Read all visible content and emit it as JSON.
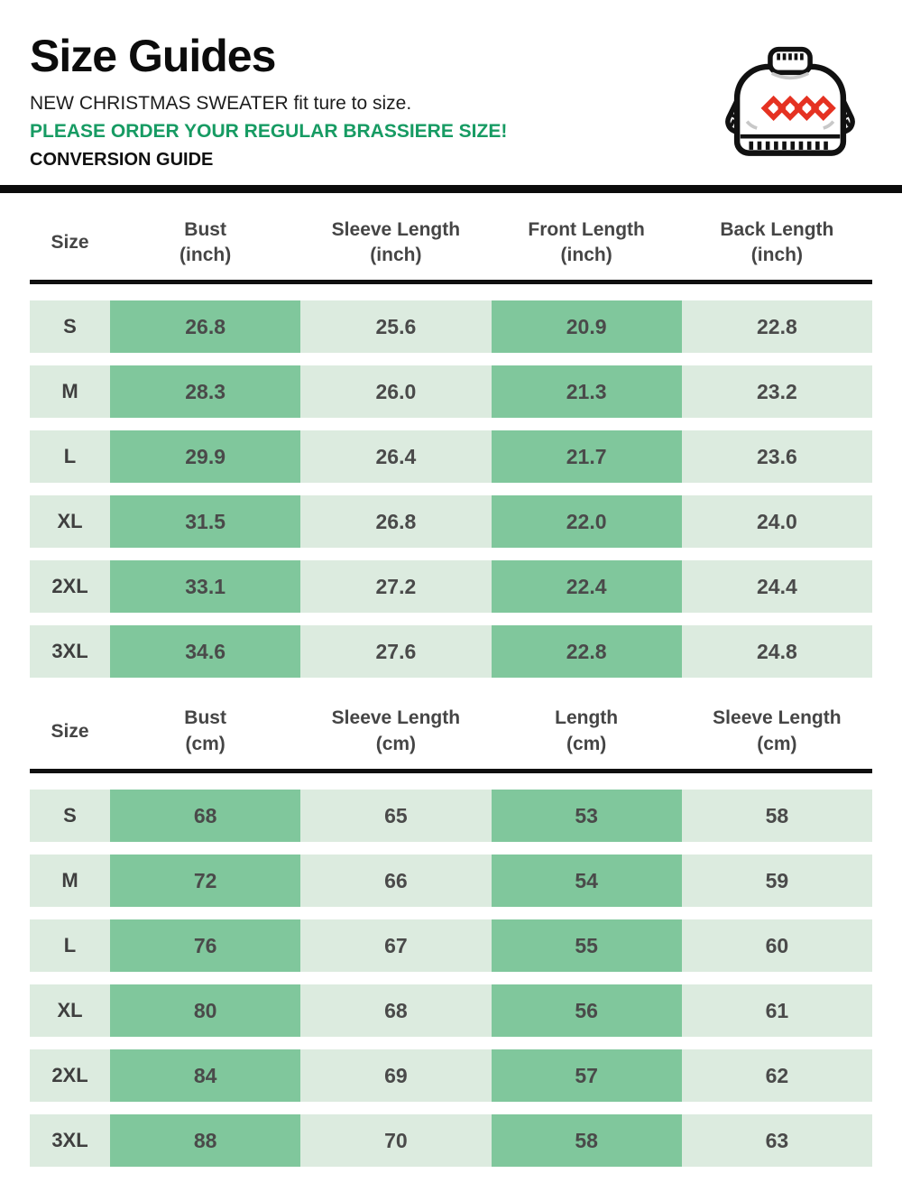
{
  "header": {
    "title": "Size Guides",
    "subtitle": "NEW CHRISTMAS SWEATER fit ture to size.",
    "notice": "PLEASE ORDER YOUR REGULAR BRASSIERE SIZE!",
    "section_label": "CONVERSION GUIDE",
    "icon": "christmas-sweater-icon"
  },
  "colors": {
    "accent_green": "#179b63",
    "cell_dark_green": "#80c79c",
    "cell_light_green": "#dcebdf",
    "cell_text_gray": "#4a4a4a",
    "divider_black": "#0c0c0c",
    "sweater_diamond_red": "#e53222"
  },
  "tables": [
    {
      "name": "inch-size-table",
      "columns": [
        {
          "label": "Size",
          "unit": ""
        },
        {
          "label": "Bust",
          "unit": "(inch)"
        },
        {
          "label": "Sleeve Length",
          "unit": "(inch)"
        },
        {
          "label": "Front Length",
          "unit": "(inch)"
        },
        {
          "label": "Back Length",
          "unit": "(inch)"
        }
      ],
      "rows": [
        {
          "size": "S",
          "values": [
            "26.8",
            "25.6",
            "20.9",
            "22.8"
          ]
        },
        {
          "size": "M",
          "values": [
            "28.3",
            "26.0",
            "21.3",
            "23.2"
          ]
        },
        {
          "size": "L",
          "values": [
            "29.9",
            "26.4",
            "21.7",
            "23.6"
          ]
        },
        {
          "size": "XL",
          "values": [
            "31.5",
            "26.8",
            "22.0",
            "24.0"
          ]
        },
        {
          "size": "2XL",
          "values": [
            "33.1",
            "27.2",
            "22.4",
            "24.4"
          ]
        },
        {
          "size": "3XL",
          "values": [
            "34.6",
            "27.6",
            "22.8",
            "24.8"
          ]
        }
      ]
    },
    {
      "name": "cm-size-table",
      "columns": [
        {
          "label": "Size",
          "unit": ""
        },
        {
          "label": "Bust",
          "unit": "(cm)"
        },
        {
          "label": "Sleeve Length",
          "unit": "(cm)"
        },
        {
          "label": "Length",
          "unit": "(cm)"
        },
        {
          "label": "Sleeve Length",
          "unit": "(cm)"
        }
      ],
      "rows": [
        {
          "size": "S",
          "values": [
            "68",
            "65",
            "53",
            "58"
          ]
        },
        {
          "size": "M",
          "values": [
            "72",
            "66",
            "54",
            "59"
          ]
        },
        {
          "size": "L",
          "values": [
            "76",
            "67",
            "55",
            "60"
          ]
        },
        {
          "size": "XL",
          "values": [
            "80",
            "68",
            "56",
            "61"
          ]
        },
        {
          "size": "2XL",
          "values": [
            "84",
            "69",
            "57",
            "62"
          ]
        },
        {
          "size": "3XL",
          "values": [
            "88",
            "70",
            "58",
            "63"
          ]
        }
      ]
    }
  ]
}
